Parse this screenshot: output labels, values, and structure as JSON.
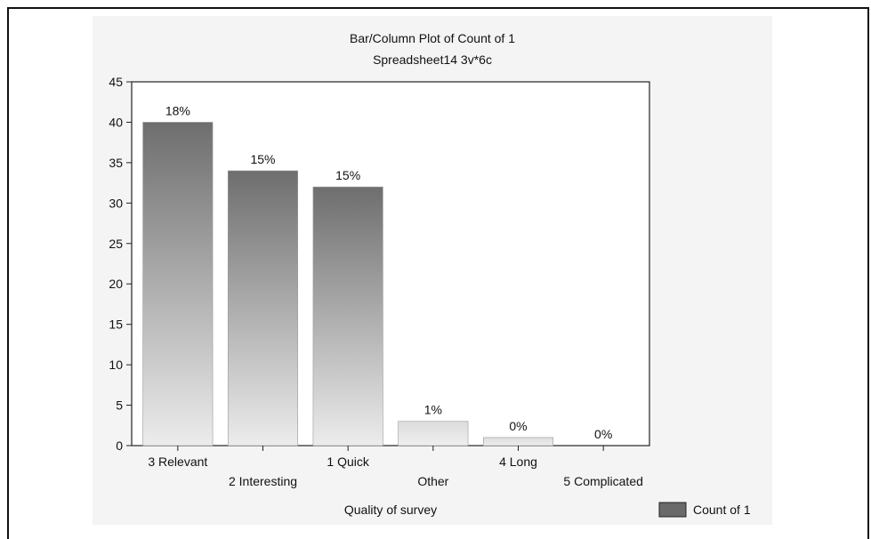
{
  "chart_data": {
    "type": "bar",
    "title": "Bar/Column Plot of Count of 1",
    "subtitle": "Spreadsheet14 3v*6c",
    "xlabel": "Quality of survey",
    "ylabel": "",
    "ylim": [
      0,
      45
    ],
    "yticks": [
      "0",
      "5",
      "10",
      "15",
      "20",
      "25",
      "30",
      "35",
      "40",
      "45"
    ],
    "categories": [
      "3 Relevant",
      "2 Interesting",
      "1 Quick",
      "Other",
      "4 Long",
      "5 Complicated"
    ],
    "series": [
      {
        "name": "Count of 1",
        "values": [
          40,
          34,
          32,
          3,
          1,
          0
        ],
        "labels": [
          "18%",
          "15%",
          "15%",
          "1%",
          "0%",
          "0%"
        ]
      }
    ],
    "grid": false,
    "legend": "bottom-right",
    "colors": {
      "bar_top": "#6e6e6e",
      "bar_bottom": "#ececec",
      "light_bar_top": "#dcdcdc",
      "legend_swatch": "#6a6a6a"
    }
  }
}
